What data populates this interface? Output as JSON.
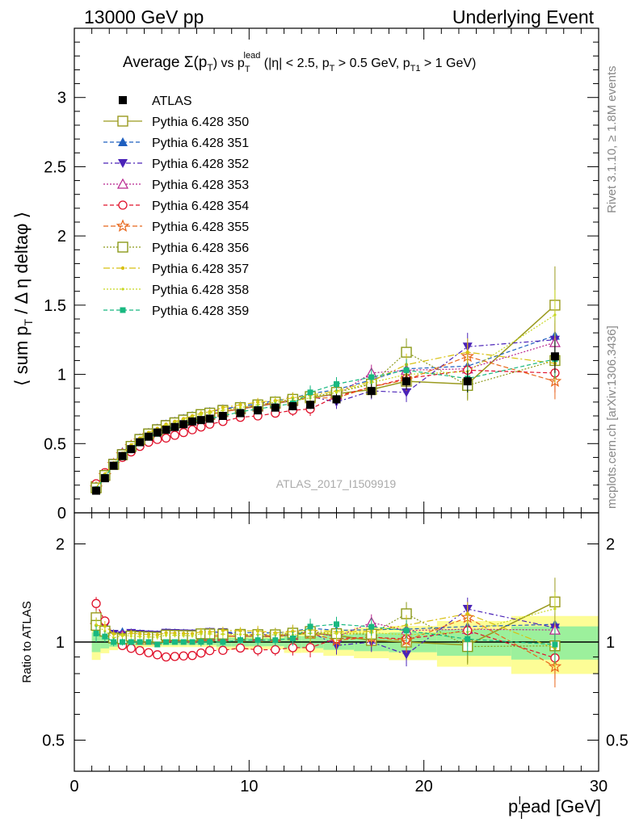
{
  "header": {
    "left": "13000 GeV pp",
    "right": "Underlying Event"
  },
  "side": {
    "rivet": "Rivet 3.1.10, ≥ 1.8M events",
    "mcplots": "mcplots.cern.ch [arXiv:1306.3436]"
  },
  "plot_title": {
    "a": "Average ",
    "b": "Σ(p",
    "c": "T",
    "d": ") vs p",
    "e": "T",
    "f": "lead",
    "g": " (|η| < 2.5, p",
    "h": "T",
    "i": " > 0.5 GeV, p",
    "j": "T1",
    "k": " > 1 GeV)"
  },
  "ylabel_main": {
    "a": "⟨ sum p",
    "b": "T",
    "c": " / Δ η deltaφ ⟩"
  },
  "ylabel_ratio": "Ratio to ATLAS",
  "xlabel": {
    "a": "p",
    "b": "T",
    "c": "l",
    "d": "ead [GeV]"
  },
  "analysis_id": "ATLAS_2017_I1509919",
  "colors": {
    "atlas": "#000000",
    "s350": "#9a9a1e",
    "s351": "#1f5fbf",
    "s352": "#4a22b8",
    "s353": "#b8248f",
    "s354": "#e0102a",
    "s355": "#e8661a",
    "s356": "#8c9a1a",
    "s357": "#d8c010",
    "s358": "#c8d820",
    "s359": "#18b880"
  },
  "chart_data": {
    "type": "scatter",
    "x": [
      1.25,
      1.75,
      2.25,
      2.75,
      3.25,
      3.75,
      4.25,
      4.75,
      5.25,
      5.75,
      6.25,
      6.75,
      7.25,
      7.75,
      8.5,
      9.5,
      10.5,
      11.5,
      12.5,
      13.5,
      15.0,
      17.0,
      19.0,
      22.5,
      27.5
    ],
    "xlim": [
      0,
      30
    ],
    "xticks": [
      "0",
      "10",
      "20",
      "30"
    ],
    "ylim_main": [
      0,
      3.5
    ],
    "yticks_main": [
      "0",
      "0.5",
      "1",
      "1.5",
      "2",
      "2.5",
      "3"
    ],
    "ylim_ratio": [
      0.35,
      2.3
    ],
    "yticks_ratio": [
      "0.5",
      "1",
      "2"
    ],
    "atlas": {
      "name": "ATLAS",
      "y": [
        0.16,
        0.25,
        0.34,
        0.41,
        0.46,
        0.51,
        0.55,
        0.58,
        0.6,
        0.62,
        0.64,
        0.66,
        0.67,
        0.68,
        0.7,
        0.72,
        0.74,
        0.76,
        0.77,
        0.78,
        0.82,
        0.88,
        0.95,
        0.95,
        1.13
      ],
      "yerr": [
        0.01,
        0.01,
        0.01,
        0.01,
        0.01,
        0.01,
        0.01,
        0.01,
        0.01,
        0.01,
        0.01,
        0.01,
        0.01,
        0.01,
        0.02,
        0.02,
        0.02,
        0.02,
        0.03,
        0.03,
        0.04,
        0.05,
        0.06,
        0.08,
        0.12
      ]
    },
    "series": [
      {
        "name": "Pythia 6.428 350",
        "y": [
          0.19,
          0.27,
          0.35,
          0.42,
          0.48,
          0.53,
          0.57,
          0.6,
          0.63,
          0.65,
          0.67,
          0.69,
          0.7,
          0.71,
          0.73,
          0.75,
          0.77,
          0.79,
          0.81,
          0.83,
          0.86,
          0.89,
          0.95,
          0.93,
          1.5
        ],
        "yerr": [
          0.01,
          0.01,
          0.01,
          0.01,
          0.01,
          0.01,
          0.01,
          0.01,
          0.01,
          0.01,
          0.01,
          0.01,
          0.02,
          0.02,
          0.02,
          0.02,
          0.03,
          0.03,
          0.04,
          0.05,
          0.05,
          0.06,
          0.08,
          0.12,
          0.28
        ]
      },
      {
        "name": "Pythia 6.428 351",
        "y": [
          0.18,
          0.28,
          0.36,
          0.44,
          0.49,
          0.54,
          0.58,
          0.61,
          0.64,
          0.66,
          0.68,
          0.7,
          0.71,
          0.73,
          0.75,
          0.77,
          0.79,
          0.81,
          0.83,
          0.86,
          0.89,
          0.96,
          1.04,
          1.06,
          1.28
        ],
        "yerr": [
          0.01,
          0.01,
          0.01,
          0.01,
          0.01,
          0.01,
          0.01,
          0.01,
          0.01,
          0.01,
          0.01,
          0.01,
          0.02,
          0.02,
          0.02,
          0.02,
          0.03,
          0.03,
          0.04,
          0.05,
          0.05,
          0.06,
          0.08,
          0.1,
          0.15
        ]
      },
      {
        "name": "Pythia 6.428 352",
        "y": [
          0.18,
          0.28,
          0.36,
          0.43,
          0.49,
          0.54,
          0.58,
          0.61,
          0.64,
          0.66,
          0.68,
          0.7,
          0.71,
          0.73,
          0.75,
          0.76,
          0.78,
          0.8,
          0.81,
          0.84,
          0.8,
          0.88,
          0.87,
          1.2,
          1.25
        ],
        "yerr": [
          0.01,
          0.01,
          0.01,
          0.01,
          0.01,
          0.01,
          0.01,
          0.01,
          0.01,
          0.01,
          0.01,
          0.01,
          0.02,
          0.02,
          0.02,
          0.02,
          0.03,
          0.03,
          0.04,
          0.05,
          0.05,
          0.06,
          0.07,
          0.1,
          0.14
        ]
      },
      {
        "name": "Pythia 6.428 353",
        "y": [
          0.18,
          0.27,
          0.35,
          0.43,
          0.48,
          0.53,
          0.57,
          0.6,
          0.62,
          0.65,
          0.66,
          0.68,
          0.7,
          0.71,
          0.73,
          0.75,
          0.77,
          0.79,
          0.81,
          0.84,
          0.85,
          1.01,
          1.03,
          1.04,
          1.23
        ],
        "yerr": [
          0.01,
          0.01,
          0.01,
          0.01,
          0.01,
          0.01,
          0.01,
          0.01,
          0.01,
          0.01,
          0.01,
          0.01,
          0.02,
          0.02,
          0.02,
          0.02,
          0.03,
          0.03,
          0.04,
          0.05,
          0.05,
          0.06,
          0.08,
          0.1,
          0.14
        ]
      },
      {
        "name": "Pythia 6.428 354",
        "y": [
          0.21,
          0.29,
          0.35,
          0.4,
          0.44,
          0.48,
          0.51,
          0.53,
          0.54,
          0.56,
          0.58,
          0.6,
          0.62,
          0.64,
          0.66,
          0.69,
          0.7,
          0.72,
          0.74,
          0.75,
          0.84,
          0.91,
          0.97,
          1.03,
          1.01
        ],
        "yerr": [
          0.01,
          0.01,
          0.01,
          0.01,
          0.01,
          0.01,
          0.01,
          0.01,
          0.01,
          0.01,
          0.01,
          0.01,
          0.02,
          0.02,
          0.02,
          0.02,
          0.03,
          0.03,
          0.04,
          0.05,
          0.05,
          0.06,
          0.08,
          0.1,
          0.14
        ]
      },
      {
        "name": "Pythia 6.428 355",
        "y": [
          0.18,
          0.27,
          0.35,
          0.42,
          0.48,
          0.52,
          0.56,
          0.59,
          0.62,
          0.64,
          0.66,
          0.68,
          0.7,
          0.71,
          0.73,
          0.75,
          0.78,
          0.79,
          0.82,
          0.83,
          0.83,
          0.91,
          0.96,
          1.13,
          0.95
        ],
        "yerr": [
          0.01,
          0.01,
          0.01,
          0.01,
          0.01,
          0.01,
          0.01,
          0.01,
          0.01,
          0.01,
          0.01,
          0.01,
          0.02,
          0.02,
          0.02,
          0.02,
          0.03,
          0.03,
          0.04,
          0.05,
          0.05,
          0.06,
          0.08,
          0.1,
          0.13
        ]
      },
      {
        "name": "Pythia 6.428 356",
        "y": [
          0.18,
          0.27,
          0.35,
          0.42,
          0.48,
          0.53,
          0.57,
          0.6,
          0.63,
          0.65,
          0.67,
          0.69,
          0.71,
          0.72,
          0.74,
          0.76,
          0.78,
          0.8,
          0.82,
          0.84,
          0.87,
          0.93,
          1.16,
          0.92,
          1.1
        ],
        "yerr": [
          0.01,
          0.01,
          0.01,
          0.01,
          0.01,
          0.01,
          0.01,
          0.01,
          0.01,
          0.01,
          0.01,
          0.01,
          0.02,
          0.02,
          0.02,
          0.02,
          0.03,
          0.03,
          0.04,
          0.05,
          0.05,
          0.06,
          0.1,
          0.1,
          0.15
        ]
      },
      {
        "name": "Pythia 6.428 357",
        "y": [
          0.18,
          0.28,
          0.36,
          0.43,
          0.49,
          0.54,
          0.58,
          0.61,
          0.64,
          0.66,
          0.68,
          0.7,
          0.72,
          0.73,
          0.76,
          0.78,
          0.8,
          0.81,
          0.83,
          0.85,
          0.88,
          0.95,
          1.07,
          1.16,
          1.08
        ],
        "yerr": [
          0.01,
          0.01,
          0.01,
          0.01,
          0.01,
          0.01,
          0.01,
          0.01,
          0.01,
          0.01,
          0.01,
          0.01,
          0.02,
          0.02,
          0.02,
          0.02,
          0.03,
          0.03,
          0.04,
          0.05,
          0.05,
          0.06,
          0.08,
          0.1,
          0.14
        ]
      },
      {
        "name": "Pythia 6.428 358",
        "y": [
          0.18,
          0.27,
          0.35,
          0.43,
          0.48,
          0.53,
          0.57,
          0.6,
          0.63,
          0.65,
          0.67,
          0.69,
          0.71,
          0.72,
          0.74,
          0.76,
          0.78,
          0.8,
          0.81,
          0.83,
          0.87,
          0.94,
          1.0,
          1.02,
          1.43
        ],
        "yerr": [
          0.01,
          0.01,
          0.01,
          0.01,
          0.01,
          0.01,
          0.01,
          0.01,
          0.01,
          0.01,
          0.01,
          0.01,
          0.02,
          0.02,
          0.02,
          0.02,
          0.03,
          0.03,
          0.04,
          0.05,
          0.05,
          0.06,
          0.08,
          0.1,
          0.18
        ]
      },
      {
        "name": "Pythia 6.428 359",
        "y": [
          0.17,
          0.26,
          0.34,
          0.41,
          0.46,
          0.51,
          0.55,
          0.57,
          0.6,
          0.62,
          0.64,
          0.66,
          0.67,
          0.68,
          0.7,
          0.73,
          0.75,
          0.77,
          0.79,
          0.87,
          0.93,
          0.98,
          1.03,
          0.97,
          1.11
        ],
        "yerr": [
          0.01,
          0.01,
          0.01,
          0.01,
          0.01,
          0.01,
          0.01,
          0.01,
          0.01,
          0.01,
          0.01,
          0.01,
          0.02,
          0.02,
          0.02,
          0.02,
          0.03,
          0.03,
          0.04,
          0.05,
          0.05,
          0.06,
          0.08,
          0.1,
          0.14
        ]
      }
    ]
  }
}
